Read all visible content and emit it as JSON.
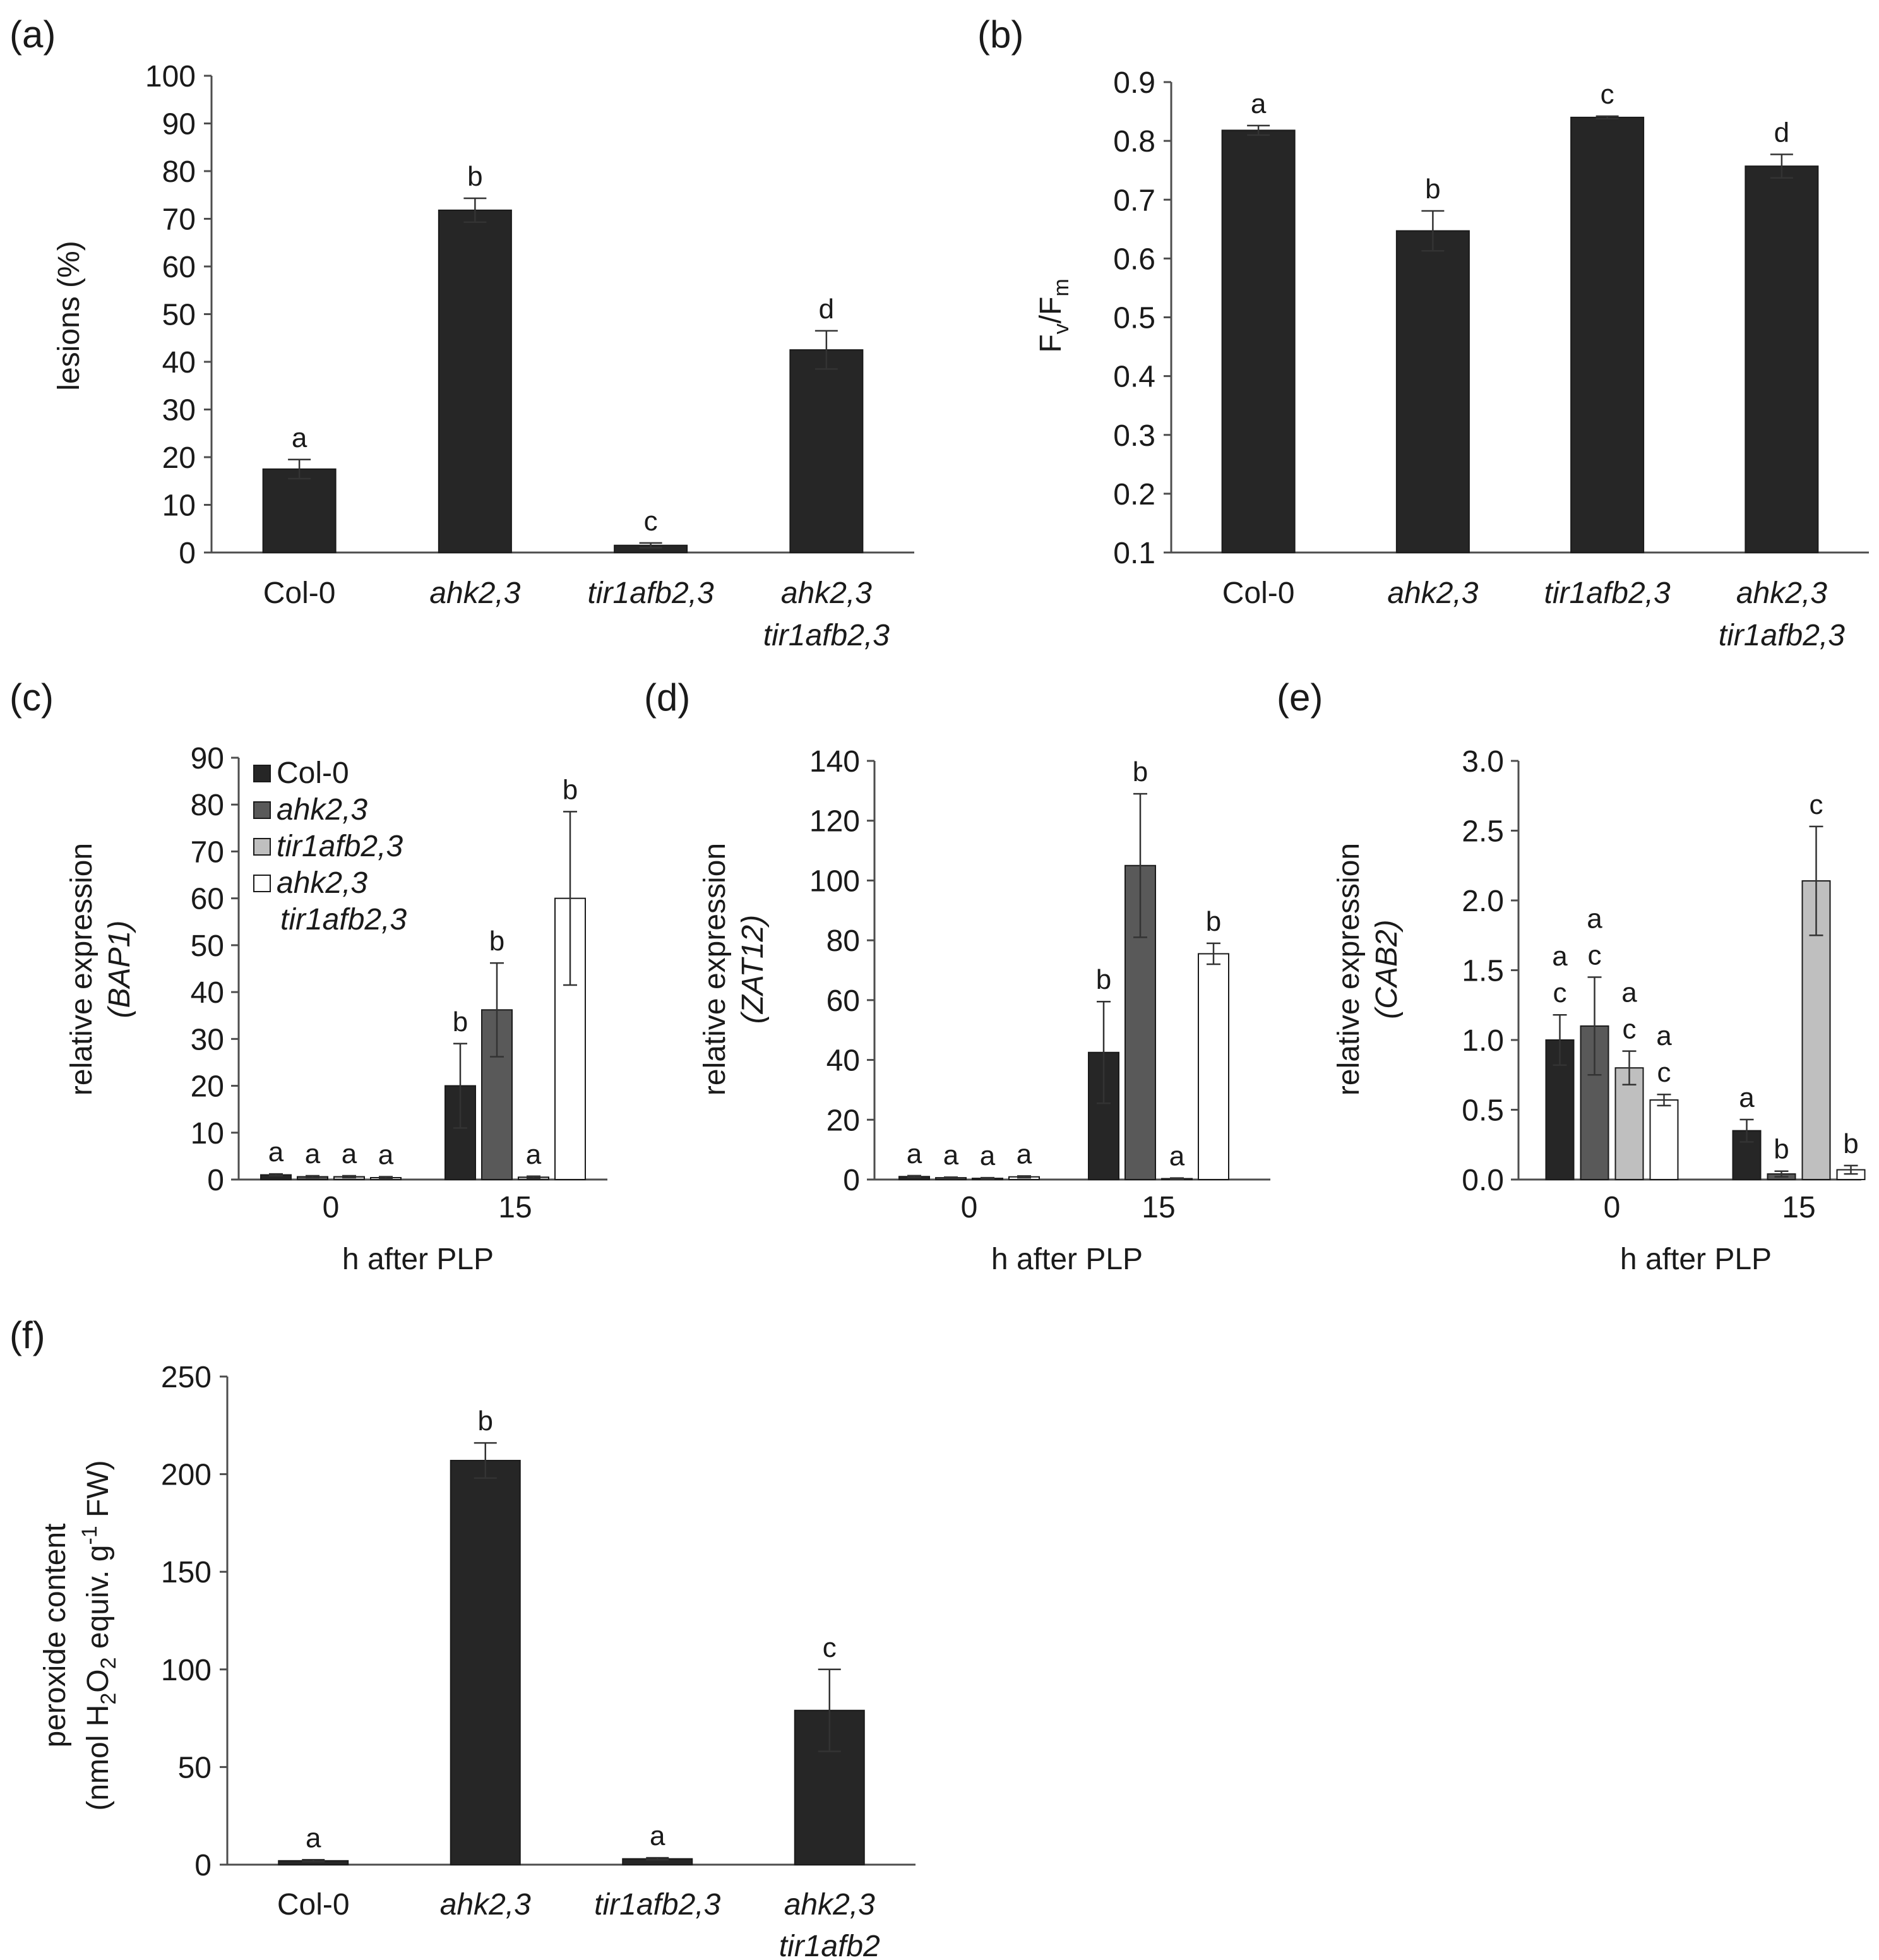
{
  "colors": {
    "black": "#262626",
    "dark_gray": "#595959",
    "light_gray": "#bfbfbf",
    "white": "#ffffff",
    "axis": "#4d4d4d",
    "text": "#1a1a1a"
  },
  "chart_data": [
    {
      "id": "a",
      "panel_label": "(a)",
      "type": "bar",
      "ylabel": "lesions (%)",
      "ylim": [
        0,
        100
      ],
      "yticks": [
        "0",
        "10",
        "20",
        "30",
        "40",
        "50",
        "60",
        "70",
        "80",
        "90",
        "100"
      ],
      "categories": [
        [
          "Col-0"
        ],
        [
          "ahk2,3"
        ],
        [
          "tir1afb2,3"
        ],
        [
          "ahk2,3",
          "tir1afb2,3"
        ]
      ],
      "category_italic": [
        false,
        true,
        true,
        true
      ],
      "values": [
        17.5,
        71.8,
        1.5,
        42.5
      ],
      "errors": [
        2.0,
        2.5,
        0.5,
        4.0
      ],
      "letters": [
        "a",
        "b",
        "c",
        "d"
      ],
      "color": "#262626"
    },
    {
      "id": "b",
      "panel_label": "(b)",
      "type": "bar",
      "ylabel": "Fv/Fm",
      "ylabel_parts": {
        "main1": "F",
        "sub1": "v",
        "main2": "/F",
        "sub2": "m"
      },
      "ylim": [
        0.1,
        0.9
      ],
      "yticks": [
        "0.1",
        "0.2",
        "0.3",
        "0.4",
        "0.5",
        "0.6",
        "0.7",
        "0.8",
        "0.9"
      ],
      "categories": [
        [
          "Col-0"
        ],
        [
          "ahk2,3"
        ],
        [
          "tir1afb2,3"
        ],
        [
          "ahk2,3",
          "tir1afb2,3"
        ]
      ],
      "category_italic": [
        false,
        true,
        true,
        true
      ],
      "values": [
        0.818,
        0.647,
        0.84,
        0.757
      ],
      "errors": [
        0.008,
        0.034,
        0.002,
        0.02
      ],
      "letters": [
        "a",
        "b",
        "c",
        "d"
      ],
      "color": "#262626"
    },
    {
      "id": "c",
      "panel_label": "(c)",
      "type": "bar",
      "ylabel": [
        "relative expression",
        "(BAP1)"
      ],
      "ylim": [
        0,
        90
      ],
      "yticks": [
        "0",
        "10",
        "20",
        "30",
        "40",
        "50",
        "60",
        "70",
        "80",
        "90"
      ],
      "xlabel": "h after PLP",
      "categories": [
        "0",
        "15"
      ],
      "series": [
        {
          "name": "Col-0",
          "values": [
            1.0,
            20.0
          ],
          "errors": [
            0.2,
            9.0
          ],
          "letters": [
            "a",
            "b"
          ]
        },
        {
          "name": "ahk2,3",
          "values": [
            0.6,
            36.2
          ],
          "errors": [
            0.2,
            10.0
          ],
          "letters": [
            "a",
            "b"
          ]
        },
        {
          "name": "tir1afb2,3",
          "values": [
            0.6,
            0.5
          ],
          "errors": [
            0.2,
            0.2
          ],
          "letters": [
            "a",
            "a"
          ]
        },
        {
          "name": "ahk2,3 tir1afb2,3",
          "values": [
            0.4,
            60.0
          ],
          "errors": [
            0.2,
            18.5
          ],
          "letters": [
            "a",
            "b"
          ]
        }
      ],
      "legend": [
        {
          "lines": [
            "Col-0"
          ],
          "italic": false
        },
        {
          "lines": [
            "ahk2,3"
          ],
          "italic": true
        },
        {
          "lines": [
            "tir1afb2,3"
          ],
          "italic": true
        },
        {
          "lines": [
            "ahk2,3",
            "tir1afb2,3"
          ],
          "italic": true
        }
      ]
    },
    {
      "id": "d",
      "panel_label": "(d)",
      "type": "bar",
      "ylabel": [
        "relative expression",
        "(ZAT12)"
      ],
      "ylim": [
        0,
        140
      ],
      "yticks": [
        "0",
        "20",
        "40",
        "60",
        "80",
        "100",
        "120",
        "140"
      ],
      "xlabel": "h after PLP",
      "categories": [
        "0",
        "15"
      ],
      "series": [
        {
          "name": "Col-0",
          "values": [
            1.0,
            42.5
          ],
          "errors": [
            0.3,
            17.0
          ],
          "letters": [
            "a",
            "b"
          ]
        },
        {
          "name": "ahk2,3",
          "values": [
            0.6,
            105.0
          ],
          "errors": [
            0.2,
            24.0
          ],
          "letters": [
            "a",
            "b"
          ]
        },
        {
          "name": "tir1afb2,3",
          "values": [
            0.4,
            0.3
          ],
          "errors": [
            0.2,
            0.2
          ],
          "letters": [
            "a",
            "a"
          ]
        },
        {
          "name": "ahk2,3 tir1afb2,3",
          "values": [
            0.9,
            75.5
          ],
          "errors": [
            0.3,
            3.5
          ],
          "letters": [
            "a",
            "b"
          ]
        }
      ]
    },
    {
      "id": "e",
      "panel_label": "(e)",
      "type": "bar",
      "ylabel": [
        "relative expression",
        "(CAB2)"
      ],
      "ylim": [
        0,
        3.0
      ],
      "yticks": [
        "0.0",
        "0.5",
        "1.0",
        "1.5",
        "2.0",
        "2.5",
        "3.0"
      ],
      "xlabel": "h after PLP",
      "categories": [
        "0",
        "15"
      ],
      "series": [
        {
          "name": "Col-0",
          "values": [
            1.0,
            0.35
          ],
          "errors": [
            0.18,
            0.08
          ],
          "letters": [
            [
              "a",
              "c"
            ],
            [
              "a"
            ]
          ]
        },
        {
          "name": "ahk2,3",
          "values": [
            1.1,
            0.04
          ],
          "errors": [
            0.35,
            0.02
          ],
          "letters": [
            [
              "a",
              "c"
            ],
            [
              "b"
            ]
          ]
        },
        {
          "name": "tir1afb2,3",
          "values": [
            0.8,
            2.14
          ],
          "errors": [
            0.12,
            0.39
          ],
          "letters": [
            [
              "a",
              "c"
            ],
            [
              "c"
            ]
          ]
        },
        {
          "name": "ahk2,3 tir1afb2,3",
          "values": [
            0.57,
            0.07
          ],
          "errors": [
            0.04,
            0.03
          ],
          "letters": [
            [
              "a",
              "c"
            ],
            [
              "b"
            ]
          ]
        }
      ]
    },
    {
      "id": "f",
      "panel_label": "(f)",
      "type": "bar",
      "ylabel": [
        "peroxide content",
        "(nmol H2O2 equiv. g-1 FW)"
      ],
      "ylabel_parts": {
        "line1": "peroxide content",
        "pre": "(nmol H",
        "sub1": "2",
        "mid": "O",
        "sub2": "2",
        "post1": " equiv. g",
        "sup": "-1",
        "post2": " FW)"
      },
      "ylim": [
        0,
        250
      ],
      "yticks": [
        "0",
        "50",
        "100",
        "150",
        "200",
        "250"
      ],
      "categories": [
        [
          "Col-0"
        ],
        [
          "ahk2,3"
        ],
        [
          "tir1afb2,3"
        ],
        [
          "ahk2,3",
          "tir1afb2"
        ]
      ],
      "category_italic": [
        false,
        true,
        true,
        true
      ],
      "values": [
        2.0,
        207.0,
        3.0,
        79.0
      ],
      "errors": [
        0.5,
        9.0,
        0.5,
        21.0
      ],
      "letters": [
        "a",
        "b",
        "a",
        "c"
      ],
      "color": "#262626"
    }
  ]
}
